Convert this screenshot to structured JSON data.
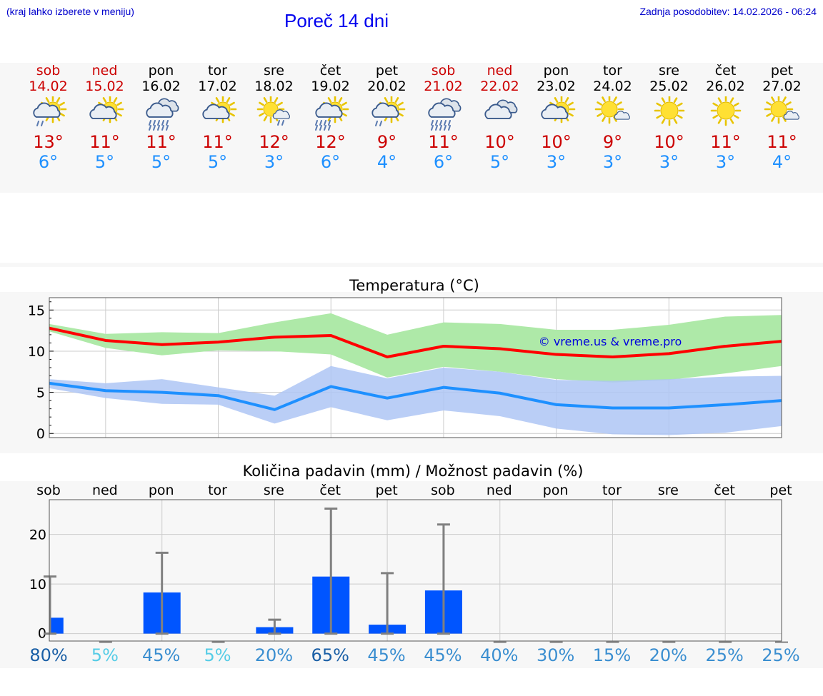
{
  "header": {
    "menu_hint": "(kraj lahko izberete v meniju)",
    "title": "Poreč 14 dni",
    "updated": "Zadnja posodobitev: 14.02.2026 - 06:24"
  },
  "colors": {
    "weekend": "#cc0000",
    "weekday": "#000000",
    "max_line": "#ff0000",
    "min_line": "#1e90ff",
    "max_band": "#aee9a8",
    "min_band": "#aec6f4",
    "bars": "#0055ff"
  },
  "days": [
    {
      "name": "sob",
      "date": "14.02",
      "weekend": true,
      "icon": "partly-sunny-light-rain-icon",
      "tmax": "13°",
      "tmin": "6°"
    },
    {
      "name": "ned",
      "date": "15.02",
      "weekend": true,
      "icon": "partly-sunny-cloud-icon",
      "tmax": "11°",
      "tmin": "5°"
    },
    {
      "name": "pon",
      "date": "16.02",
      "weekend": false,
      "icon": "cloudy-heavy-rain-icon",
      "tmax": "11°",
      "tmin": "5°"
    },
    {
      "name": "tor",
      "date": "17.02",
      "weekend": false,
      "icon": "partly-sunny-cloud-icon",
      "tmax": "11°",
      "tmin": "5°"
    },
    {
      "name": "sre",
      "date": "18.02",
      "weekend": false,
      "icon": "sunny-cloud-light-rain-icon",
      "tmax": "12°",
      "tmin": "3°"
    },
    {
      "name": "čet",
      "date": "19.02",
      "weekend": false,
      "icon": "partly-sunny-heavy-rain-icon",
      "tmax": "12°",
      "tmin": "6°"
    },
    {
      "name": "pet",
      "date": "20.02",
      "weekend": false,
      "icon": "partly-sunny-light-rain-icon",
      "tmax": "9°",
      "tmin": "4°"
    },
    {
      "name": "sob",
      "date": "21.02",
      "weekend": true,
      "icon": "cloudy-heavy-rain-icon",
      "tmax": "11°",
      "tmin": "6°"
    },
    {
      "name": "ned",
      "date": "22.02",
      "weekend": true,
      "icon": "cloudy-icon",
      "tmax": "10°",
      "tmin": "5°"
    },
    {
      "name": "pon",
      "date": "23.02",
      "weekend": false,
      "icon": "partly-sunny-cloud-icon",
      "tmax": "10°",
      "tmin": "3°"
    },
    {
      "name": "tor",
      "date": "24.02",
      "weekend": false,
      "icon": "sunny-small-cloud-icon",
      "tmax": "9°",
      "tmin": "3°"
    },
    {
      "name": "sre",
      "date": "25.02",
      "weekend": false,
      "icon": "sunny-icon",
      "tmax": "10°",
      "tmin": "3°"
    },
    {
      "name": "čet",
      "date": "26.02",
      "weekend": false,
      "icon": "sunny-icon",
      "tmax": "11°",
      "tmin": "3°"
    },
    {
      "name": "pet",
      "date": "27.02",
      "weekend": false,
      "icon": "sunny-small-cloud-icon",
      "tmax": "11°",
      "tmin": "4°"
    }
  ],
  "chart_data": [
    {
      "type": "line",
      "title": "Temperatura (°C)",
      "watermark": "© vreme.us & vreme.pro",
      "xlabel": "",
      "ylabel": "",
      "ylim": [
        -0.5,
        16.5
      ],
      "yticks": [
        0,
        5,
        10,
        15
      ],
      "x": [
        "14.02",
        "15.02",
        "16.02",
        "17.02",
        "18.02",
        "19.02",
        "20.02",
        "21.02",
        "22.02",
        "23.02",
        "24.02",
        "25.02",
        "26.02",
        "27.02"
      ],
      "series": [
        {
          "name": "max",
          "values": [
            12.8,
            11.3,
            10.8,
            11.1,
            11.7,
            11.9,
            9.3,
            10.6,
            10.3,
            9.6,
            9.3,
            9.7,
            10.6,
            11.2
          ]
        },
        {
          "name": "min",
          "values": [
            6.1,
            5.2,
            5.0,
            4.6,
            2.9,
            5.7,
            4.3,
            5.6,
            4.9,
            3.5,
            3.1,
            3.1,
            3.5,
            4.0
          ]
        }
      ],
      "bands": [
        {
          "name": "max-range",
          "upper": [
            13.3,
            12.1,
            12.3,
            12.2,
            13.5,
            14.6,
            12.0,
            13.5,
            13.3,
            12.6,
            12.6,
            13.2,
            14.2,
            14.4
          ],
          "lower": [
            12.4,
            10.4,
            9.5,
            10.1,
            10.0,
            9.6,
            6.8,
            8.1,
            7.5,
            6.6,
            6.2,
            6.5,
            7.3,
            8.2
          ]
        },
        {
          "name": "min-range",
          "upper": [
            6.6,
            6.1,
            6.6,
            5.6,
            4.6,
            8.2,
            6.7,
            8.0,
            7.5,
            6.5,
            6.4,
            6.6,
            6.9,
            7.0
          ],
          "lower": [
            5.5,
            4.3,
            3.6,
            3.5,
            1.2,
            3.2,
            1.6,
            2.8,
            2.1,
            0.6,
            -0.1,
            -0.2,
            0.1,
            0.9
          ]
        }
      ]
    },
    {
      "type": "bar",
      "title": "Količina padavin (mm) / Možnost padavin (%)",
      "categories": [
        "sob",
        "ned",
        "pon",
        "tor",
        "sre",
        "čet",
        "pet",
        "sob",
        "ned",
        "pon",
        "tor",
        "sre",
        "čet",
        "pet"
      ],
      "ylim": [
        -1.5,
        27
      ],
      "yticks": [
        0,
        10,
        20
      ],
      "values": [
        3.2,
        0,
        8.3,
        0,
        1.3,
        11.5,
        1.8,
        8.7,
        0,
        0,
        0,
        0,
        0,
        0
      ],
      "error_max": [
        11.5,
        0,
        16.3,
        0,
        2.8,
        25.2,
        12.2,
        22.0,
        0,
        0,
        0,
        0,
        0,
        0
      ],
      "chance": [
        "80%",
        "5%",
        "45%",
        "5%",
        "20%",
        "65%",
        "45%",
        "45%",
        "40%",
        "30%",
        "15%",
        "20%",
        "25%",
        "25%"
      ],
      "chance_colors": [
        "#1a5fa6",
        "#55cce6",
        "#3a8ed0",
        "#55cce6",
        "#3a8ed0",
        "#1a5fa6",
        "#3a8ed0",
        "#3a8ed0",
        "#3a8ed0",
        "#3a8ed0",
        "#3a8ed0",
        "#3a8ed0",
        "#3a8ed0",
        "#3a8ed0"
      ]
    }
  ]
}
